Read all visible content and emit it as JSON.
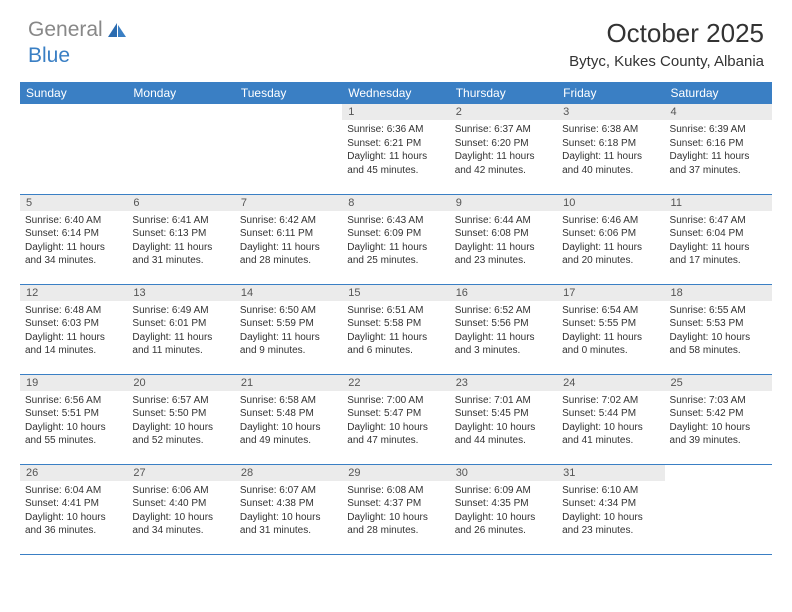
{
  "logo": {
    "general": "General",
    "blue": "Blue"
  },
  "title": "October 2025",
  "location": "Bytyc, Kukes County, Albania",
  "dayHeaders": [
    "Sunday",
    "Monday",
    "Tuesday",
    "Wednesday",
    "Thursday",
    "Friday",
    "Saturday"
  ],
  "colors": {
    "headerBg": "#3a7fc4",
    "headerText": "#ffffff",
    "dayNumBg": "#ebebeb",
    "logoGray": "#888888",
    "logoBlue": "#3a7fc4"
  },
  "weeks": [
    [
      {
        "empty": true
      },
      {
        "empty": true
      },
      {
        "empty": true
      },
      {
        "num": "1",
        "sunrise": "Sunrise: 6:36 AM",
        "sunset": "Sunset: 6:21 PM",
        "daylight": "Daylight: 11 hours and 45 minutes."
      },
      {
        "num": "2",
        "sunrise": "Sunrise: 6:37 AM",
        "sunset": "Sunset: 6:20 PM",
        "daylight": "Daylight: 11 hours and 42 minutes."
      },
      {
        "num": "3",
        "sunrise": "Sunrise: 6:38 AM",
        "sunset": "Sunset: 6:18 PM",
        "daylight": "Daylight: 11 hours and 40 minutes."
      },
      {
        "num": "4",
        "sunrise": "Sunrise: 6:39 AM",
        "sunset": "Sunset: 6:16 PM",
        "daylight": "Daylight: 11 hours and 37 minutes."
      }
    ],
    [
      {
        "num": "5",
        "sunrise": "Sunrise: 6:40 AM",
        "sunset": "Sunset: 6:14 PM",
        "daylight": "Daylight: 11 hours and 34 minutes."
      },
      {
        "num": "6",
        "sunrise": "Sunrise: 6:41 AM",
        "sunset": "Sunset: 6:13 PM",
        "daylight": "Daylight: 11 hours and 31 minutes."
      },
      {
        "num": "7",
        "sunrise": "Sunrise: 6:42 AM",
        "sunset": "Sunset: 6:11 PM",
        "daylight": "Daylight: 11 hours and 28 minutes."
      },
      {
        "num": "8",
        "sunrise": "Sunrise: 6:43 AM",
        "sunset": "Sunset: 6:09 PM",
        "daylight": "Daylight: 11 hours and 25 minutes."
      },
      {
        "num": "9",
        "sunrise": "Sunrise: 6:44 AM",
        "sunset": "Sunset: 6:08 PM",
        "daylight": "Daylight: 11 hours and 23 minutes."
      },
      {
        "num": "10",
        "sunrise": "Sunrise: 6:46 AM",
        "sunset": "Sunset: 6:06 PM",
        "daylight": "Daylight: 11 hours and 20 minutes."
      },
      {
        "num": "11",
        "sunrise": "Sunrise: 6:47 AM",
        "sunset": "Sunset: 6:04 PM",
        "daylight": "Daylight: 11 hours and 17 minutes."
      }
    ],
    [
      {
        "num": "12",
        "sunrise": "Sunrise: 6:48 AM",
        "sunset": "Sunset: 6:03 PM",
        "daylight": "Daylight: 11 hours and 14 minutes."
      },
      {
        "num": "13",
        "sunrise": "Sunrise: 6:49 AM",
        "sunset": "Sunset: 6:01 PM",
        "daylight": "Daylight: 11 hours and 11 minutes."
      },
      {
        "num": "14",
        "sunrise": "Sunrise: 6:50 AM",
        "sunset": "Sunset: 5:59 PM",
        "daylight": "Daylight: 11 hours and 9 minutes."
      },
      {
        "num": "15",
        "sunrise": "Sunrise: 6:51 AM",
        "sunset": "Sunset: 5:58 PM",
        "daylight": "Daylight: 11 hours and 6 minutes."
      },
      {
        "num": "16",
        "sunrise": "Sunrise: 6:52 AM",
        "sunset": "Sunset: 5:56 PM",
        "daylight": "Daylight: 11 hours and 3 minutes."
      },
      {
        "num": "17",
        "sunrise": "Sunrise: 6:54 AM",
        "sunset": "Sunset: 5:55 PM",
        "daylight": "Daylight: 11 hours and 0 minutes."
      },
      {
        "num": "18",
        "sunrise": "Sunrise: 6:55 AM",
        "sunset": "Sunset: 5:53 PM",
        "daylight": "Daylight: 10 hours and 58 minutes."
      }
    ],
    [
      {
        "num": "19",
        "sunrise": "Sunrise: 6:56 AM",
        "sunset": "Sunset: 5:51 PM",
        "daylight": "Daylight: 10 hours and 55 minutes."
      },
      {
        "num": "20",
        "sunrise": "Sunrise: 6:57 AM",
        "sunset": "Sunset: 5:50 PM",
        "daylight": "Daylight: 10 hours and 52 minutes."
      },
      {
        "num": "21",
        "sunrise": "Sunrise: 6:58 AM",
        "sunset": "Sunset: 5:48 PM",
        "daylight": "Daylight: 10 hours and 49 minutes."
      },
      {
        "num": "22",
        "sunrise": "Sunrise: 7:00 AM",
        "sunset": "Sunset: 5:47 PM",
        "daylight": "Daylight: 10 hours and 47 minutes."
      },
      {
        "num": "23",
        "sunrise": "Sunrise: 7:01 AM",
        "sunset": "Sunset: 5:45 PM",
        "daylight": "Daylight: 10 hours and 44 minutes."
      },
      {
        "num": "24",
        "sunrise": "Sunrise: 7:02 AM",
        "sunset": "Sunset: 5:44 PM",
        "daylight": "Daylight: 10 hours and 41 minutes."
      },
      {
        "num": "25",
        "sunrise": "Sunrise: 7:03 AM",
        "sunset": "Sunset: 5:42 PM",
        "daylight": "Daylight: 10 hours and 39 minutes."
      }
    ],
    [
      {
        "num": "26",
        "sunrise": "Sunrise: 6:04 AM",
        "sunset": "Sunset: 4:41 PM",
        "daylight": "Daylight: 10 hours and 36 minutes."
      },
      {
        "num": "27",
        "sunrise": "Sunrise: 6:06 AM",
        "sunset": "Sunset: 4:40 PM",
        "daylight": "Daylight: 10 hours and 34 minutes."
      },
      {
        "num": "28",
        "sunrise": "Sunrise: 6:07 AM",
        "sunset": "Sunset: 4:38 PM",
        "daylight": "Daylight: 10 hours and 31 minutes."
      },
      {
        "num": "29",
        "sunrise": "Sunrise: 6:08 AM",
        "sunset": "Sunset: 4:37 PM",
        "daylight": "Daylight: 10 hours and 28 minutes."
      },
      {
        "num": "30",
        "sunrise": "Sunrise: 6:09 AM",
        "sunset": "Sunset: 4:35 PM",
        "daylight": "Daylight: 10 hours and 26 minutes."
      },
      {
        "num": "31",
        "sunrise": "Sunrise: 6:10 AM",
        "sunset": "Sunset: 4:34 PM",
        "daylight": "Daylight: 10 hours and 23 minutes."
      },
      {
        "empty": true
      }
    ]
  ]
}
